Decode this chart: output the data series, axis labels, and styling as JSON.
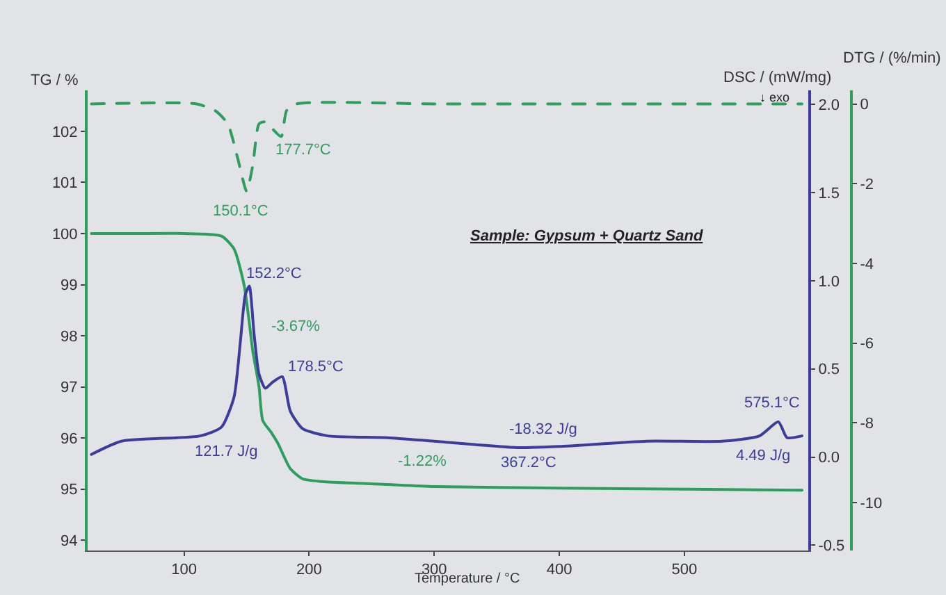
{
  "chart_data": {
    "type": "line",
    "xlabel": "Temperature / °C",
    "ylabel": "TG / %",
    "y2label": "DSC / (mW/mg)",
    "y3label": "DTG / (%/min)",
    "xlim": [
      23,
      599
    ],
    "xticks": [
      100,
      200,
      300,
      400,
      500
    ],
    "ylim": [
      93.8,
      102.8
    ],
    "yticks": [
      94,
      95,
      96,
      97,
      98,
      99,
      100,
      101,
      102
    ],
    "y2lim": [
      -0.53,
      2.08
    ],
    "y2ticks": [
      {
        "value": -0.5,
        "label": "-0.5"
      },
      {
        "value": 0,
        "label": "0.0"
      },
      {
        "value": 0.5,
        "label": "0.5"
      },
      {
        "value": 1,
        "label": "1.0"
      },
      {
        "value": 1.5,
        "label": "1.5"
      },
      {
        "value": 2,
        "label": "2.0"
      }
    ],
    "y3lim": [
      -11.2,
      0.34
    ],
    "y3ticks": [
      -10,
      -8,
      -6,
      -4,
      -2,
      0
    ],
    "grid": false,
    "marker": "none",
    "series": [
      {
        "color": "#2e9e60",
        "line_style": "solid",
        "x": [
          26,
          60,
          100,
          130,
          140,
          148,
          152,
          155,
          160,
          163,
          170,
          175,
          185,
          195,
          210,
          263,
          300,
          400,
          500,
          594
        ],
        "values": [
          100,
          100,
          100,
          99.95,
          99.7,
          99.0,
          98.3,
          97.7,
          97.0,
          96.34,
          96.1,
          95.9,
          95.4,
          95.2,
          95.15,
          95.09,
          95.05,
          95.02,
          95.0,
          94.98
        ]
      },
      {
        "color": "#3c3c9c",
        "line_style": "solid",
        "axis": "y2",
        "x": [
          26,
          50,
          113,
          130,
          140,
          145,
          149,
          152.2,
          156,
          160,
          165,
          170,
          178.5,
          185,
          195,
          215,
          263,
          300,
          367.2,
          400,
          470,
          530,
          560,
          575.1,
          582,
          594
        ],
        "values": [
          0.015,
          0.09,
          0.12,
          0.17,
          0.34,
          0.65,
          0.92,
          0.97,
          0.7,
          0.47,
          0.39,
          0.42,
          0.456,
          0.26,
          0.16,
          0.12,
          0.11,
          0.09,
          0.054,
          0.06,
          0.09,
          0.09,
          0.12,
          0.2,
          0.11,
          0.12
        ]
      },
      {
        "color": "#2e9e60",
        "line_style": "dashed",
        "axis": "y3",
        "x": [
          26,
          110,
          125,
          135,
          143,
          150.1,
          155,
          160,
          165,
          170,
          177.7,
          182,
          190,
          300,
          400,
          500,
          594
        ],
        "values": [
          0,
          0,
          -0.17,
          -0.5,
          -1.37,
          -2.19,
          -1.54,
          -0.5,
          -0.45,
          -0.6,
          -0.82,
          -0.17,
          0,
          0,
          0,
          0,
          0
        ]
      }
    ],
    "annotations": [
      "177.7°C",
      "150.1°C",
      "152.2°C",
      "-3.67%",
      "178.5°C",
      "121.7 J/g",
      "-1.22%",
      "Sample: Gypsum + Quartz Sand",
      "-18.32 J/g",
      "367.2°C",
      "575.1°C",
      "4.49 J/g",
      "↓ exo"
    ]
  }
}
